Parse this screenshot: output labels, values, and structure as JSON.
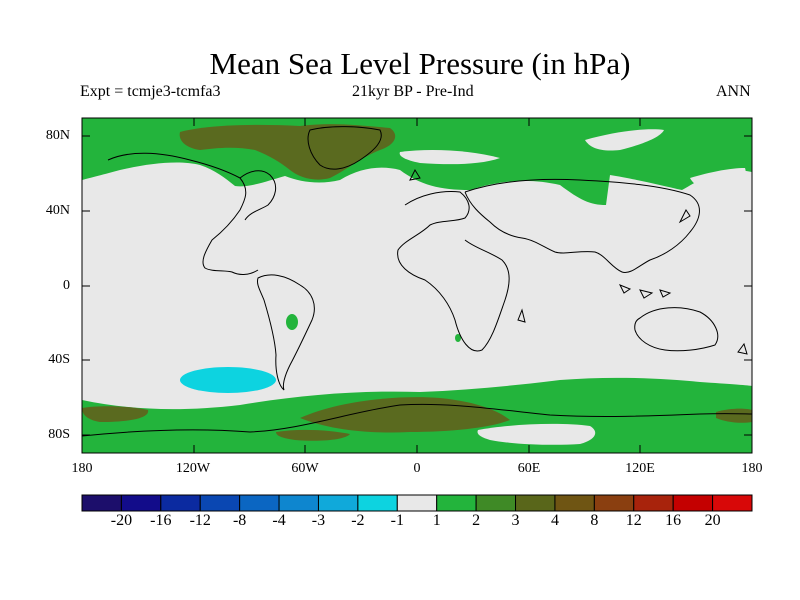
{
  "title": "Mean Sea Level Pressure (in hPa)",
  "subtitle_left": "Expt = tcmje3-tcmfa3",
  "subtitle_center": "21kyr BP - Pre-Ind",
  "subtitle_right": "ANN",
  "lat_labels": [
    "80N",
    "40N",
    "0",
    "40S",
    "80S"
  ],
  "lon_labels": [
    "180",
    "120W",
    "60W",
    "0",
    "60E",
    "120E",
    "180"
  ],
  "colorbar": {
    "labels": [
      "-20",
      "-16",
      "-12",
      "-8",
      "-4",
      "-3",
      "-2",
      "-1",
      "1",
      "2",
      "3",
      "4",
      "8",
      "12",
      "16",
      "20"
    ],
    "colors": [
      "#1c0e6b",
      "#120c8a",
      "#0b2aa0",
      "#0a47b2",
      "#0b66c2",
      "#0e86cf",
      "#10a9da",
      "#0dd3e0",
      "#e8e8e8",
      "#23b43c",
      "#3f8a26",
      "#59661a",
      "#6f5513",
      "#8a3f10",
      "#a8230c",
      "#c40000",
      "#d80808"
    ]
  },
  "colors": {
    "land_outline": "#000000",
    "zero_band": "#e8e8e8",
    "positive_low": "#23b43c",
    "positive_mid": "#3f8a26",
    "positive_high": "#6f5513",
    "negative": "#0dd3e0"
  }
}
